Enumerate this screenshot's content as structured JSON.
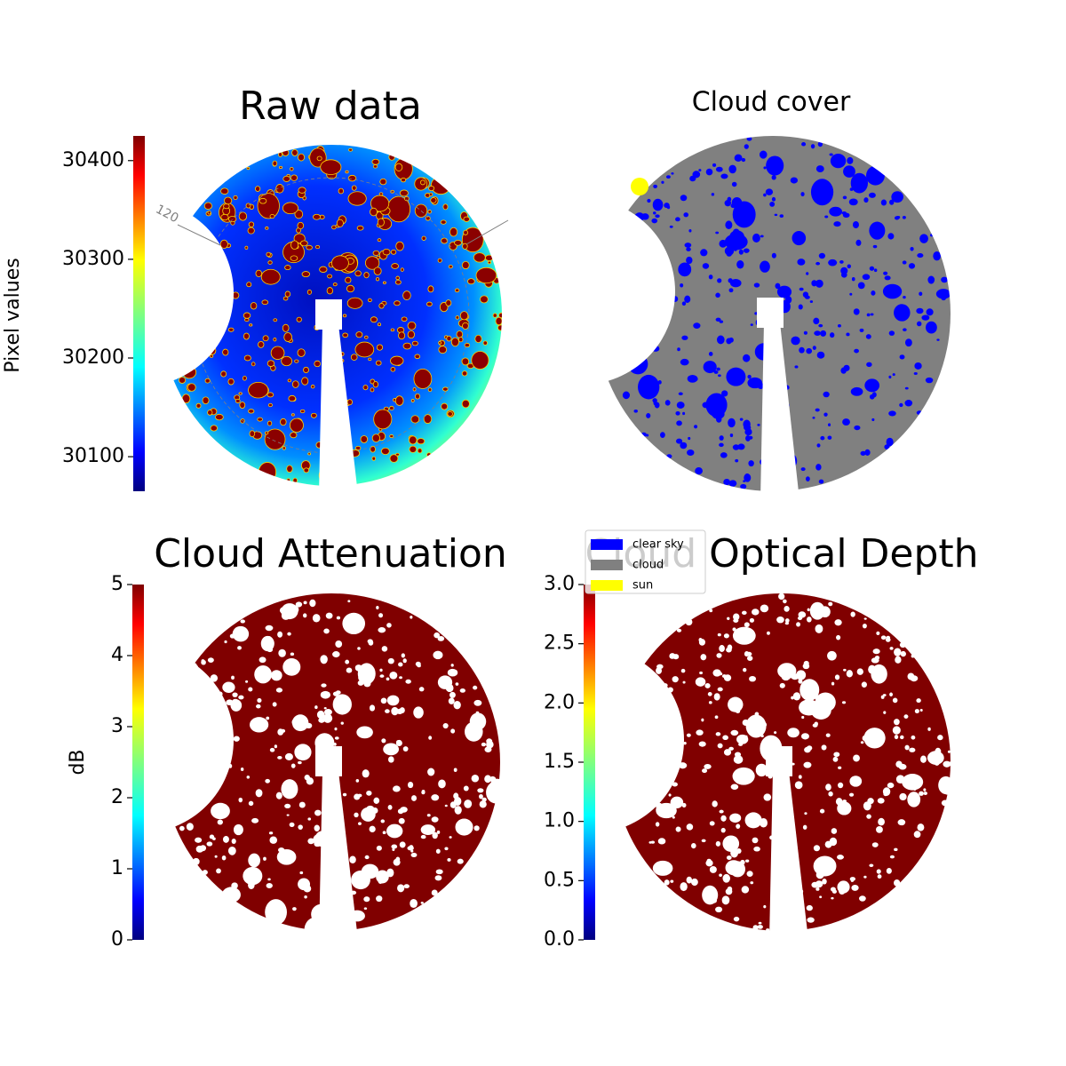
{
  "chart_data": [
    {
      "type": "image",
      "title": "Raw data",
      "colorbar": {
        "label": "Pixel values",
        "lim": [
          30065,
          30425
        ],
        "ticks": [
          30100,
          30200,
          30300,
          30400
        ]
      },
      "annotations": [
        "120"
      ]
    },
    {
      "type": "image",
      "title": "Cloud cover",
      "legend": [
        {
          "name": "clear sky",
          "color": "#0000ff"
        },
        {
          "name": "cloud",
          "color": "#808080"
        },
        {
          "name": "sun",
          "color": "#ffff00"
        }
      ]
    },
    {
      "type": "image",
      "title": "Cloud Attenuation",
      "colorbar": {
        "label": "dB",
        "lim": [
          0,
          5
        ],
        "ticks": [
          0,
          1,
          2,
          3,
          4,
          5
        ]
      }
    },
    {
      "type": "image",
      "title": "Cloud Optical Depth",
      "colorbar": {
        "lim": [
          0,
          3
        ],
        "ticks": [
          {
            "value": 0,
            "label": "0.0"
          },
          0.5,
          {
            "value": 1,
            "label": "1.0"
          },
          1.5,
          {
            "value": 2,
            "label": "2.0"
          },
          2.5,
          {
            "value": 3,
            "label": "3.0"
          }
        ]
      }
    }
  ]
}
